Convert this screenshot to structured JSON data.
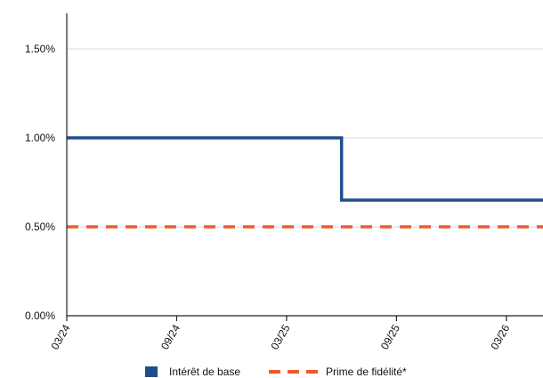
{
  "chart_data": {
    "type": "line",
    "title": "",
    "xlabel": "",
    "ylabel": "",
    "x_tick_labels": [
      "03/24",
      "09/24",
      "03/25",
      "09/25",
      "03/26"
    ],
    "y_tick_labels": [
      "0.00%",
      "0.50%",
      "1.00%",
      "1.50%"
    ],
    "ylim": [
      0,
      1.8
    ],
    "y_ticks": [
      0,
      0.5,
      1.0,
      1.5
    ],
    "xlim": [
      "2024-03",
      "2026-05"
    ],
    "grid": "horizontal",
    "legend_position": "bottom",
    "series": [
      {
        "name": "Intérêt de base",
        "color": "#1f4e8c",
        "style": "solid",
        "points": [
          {
            "x": "2024-03",
            "y": 1.0
          },
          {
            "x": "2025-06",
            "y": 1.0
          },
          {
            "x": "2025-06",
            "y": 0.65
          },
          {
            "x": "2026-05",
            "y": 0.65
          }
        ]
      },
      {
        "name": "Prime de fidélité*",
        "color": "#f15a2b",
        "style": "dashed",
        "points": [
          {
            "x": "2024-03",
            "y": 0.5
          },
          {
            "x": "2026-05",
            "y": 0.5
          }
        ]
      }
    ]
  }
}
